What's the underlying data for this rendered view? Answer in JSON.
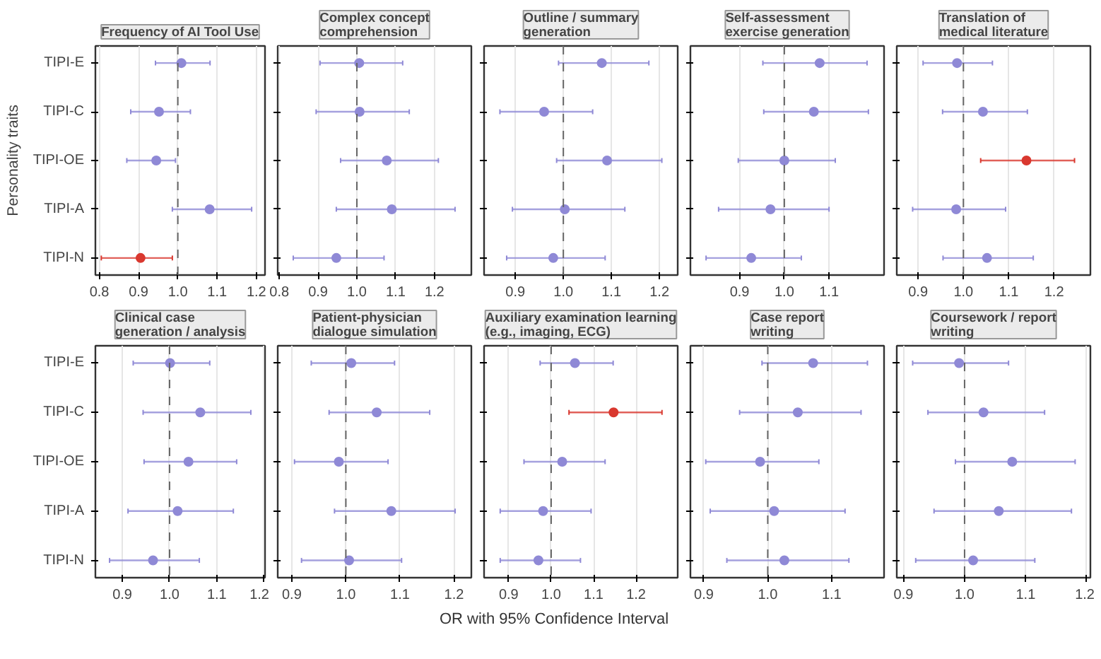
{
  "chart_data": [
    {
      "type": "scatter",
      "orientation": "horizontal",
      "title": "Frequency of AI Tool Use",
      "ylabel": "Personality traits",
      "categories": [
        "TIPI-E",
        "TIPI-C",
        "TIPI-OE",
        "TIPI-A",
        "TIPI-N"
      ],
      "values": [
        1.009,
        0.952,
        0.945,
        1.081,
        0.905
      ],
      "errors": [
        [
          0.943,
          1.082
        ],
        [
          0.88,
          1.032
        ],
        [
          0.87,
          0.994
        ],
        [
          0.986,
          1.188
        ],
        [
          0.805,
          0.986
        ]
      ],
      "colors": [
        "#8f89d6",
        "#8f89d6",
        "#8f89d6",
        "#8f89d6",
        "#d9382f"
      ],
      "xlim": [
        0.79,
        1.222
      ],
      "xticks": [
        {
          "value": 0.8,
          "label": "0.8"
        },
        {
          "value": 0.9,
          "label": "0.9"
        },
        {
          "value": 1.0,
          "label": "1.0"
        },
        {
          "value": 1.1,
          "label": "1.1"
        },
        {
          "value": 1.2,
          "label": "1.2"
        }
      ],
      "grid": "x",
      "marker": "circle",
      "ref_lines": [
        {
          "axis": "x",
          "value": 1,
          "color": "#666666",
          "line_style": "dashed"
        }
      ]
    },
    {
      "type": "scatter",
      "orientation": "horizontal",
      "title": "Complex concept\ncomprehension",
      "categories": [
        null,
        null,
        null,
        null,
        null
      ],
      "values": [
        1.006,
        1.007,
        1.077,
        1.09,
        0.947
      ],
      "errors": [
        [
          0.905,
          1.118
        ],
        [
          0.895,
          1.135
        ],
        [
          0.958,
          1.21
        ],
        [
          0.947,
          1.253
        ],
        [
          0.836,
          1.07
        ]
      ],
      "colors": [
        "#8f89d6",
        "#8f89d6",
        "#8f89d6",
        "#8f89d6",
        "#8f89d6"
      ],
      "xlim": [
        0.796,
        1.295
      ],
      "xticks": [
        {
          "value": 0.8,
          "label": "0.8"
        },
        {
          "value": 0.9,
          "label": "0.9"
        },
        {
          "value": 1.0,
          "label": "1.0"
        },
        {
          "value": 1.1,
          "label": "1.1"
        },
        {
          "value": 1.2,
          "label": "1.2"
        }
      ],
      "grid": "x",
      "marker": "circle",
      "ref_lines": [
        {
          "axis": "x",
          "value": 1,
          "color": "#666666",
          "line_style": "dashed"
        }
      ]
    },
    {
      "type": "scatter",
      "orientation": "horizontal",
      "title": "Outline / summary\ngeneration",
      "categories": [
        null,
        null,
        null,
        null,
        null
      ],
      "values": [
        1.08,
        0.96,
        1.091,
        1.003,
        0.979
      ],
      "errors": [
        [
          0.99,
          1.178
        ],
        [
          0.868,
          1.061
        ],
        [
          0.986,
          1.205
        ],
        [
          0.894,
          1.128
        ],
        [
          0.882,
          1.087
        ]
      ],
      "colors": [
        "#8f89d6",
        "#8f89d6",
        "#8f89d6",
        "#8f89d6",
        "#8f89d6"
      ],
      "xlim": [
        0.835,
        1.238
      ],
      "xticks": [
        {
          "value": 0.9,
          "label": "0.9"
        },
        {
          "value": 1.0,
          "label": "1.0"
        },
        {
          "value": 1.1,
          "label": "1.1"
        },
        {
          "value": 1.2,
          "label": "1.2"
        }
      ],
      "grid": "x",
      "marker": "circle",
      "ref_lines": [
        {
          "axis": "x",
          "value": 1,
          "color": "#666666",
          "line_style": "dashed"
        }
      ]
    },
    {
      "type": "scatter",
      "orientation": "horizontal",
      "title": "Self-assessment\nexercise generation",
      "categories": [
        null,
        null,
        null,
        null,
        null
      ],
      "values": [
        1.079,
        1.066,
        1.0,
        0.969,
        0.926
      ],
      "errors": [
        [
          0.952,
          1.185
        ],
        [
          0.954,
          1.188
        ],
        [
          0.897,
          1.114
        ],
        [
          0.853,
          1.1
        ],
        [
          0.825,
          1.038
        ]
      ],
      "colors": [
        "#8f89d6",
        "#8f89d6",
        "#8f89d6",
        "#8f89d6",
        "#8f89d6"
      ],
      "xlim": [
        0.79,
        1.223
      ],
      "xticks": [
        {
          "value": 0.9,
          "label": "0.9"
        },
        {
          "value": 1.0,
          "label": "1.0"
        },
        {
          "value": 1.1,
          "label": "1.1"
        }
      ],
      "grid": "x",
      "marker": "circle",
      "ref_lines": [
        {
          "axis": "x",
          "value": 1,
          "color": "#666666",
          "line_style": "dashed"
        }
      ]
    },
    {
      "type": "scatter",
      "orientation": "horizontal",
      "title": "Translation of\nmedical literature",
      "categories": [
        null,
        null,
        null,
        null,
        null
      ],
      "values": [
        0.986,
        1.043,
        1.139,
        0.984,
        1.052
      ],
      "errors": [
        [
          0.911,
          1.064
        ],
        [
          0.954,
          1.141
        ],
        [
          1.038,
          1.245
        ],
        [
          0.888,
          1.093
        ],
        [
          0.955,
          1.154
        ]
      ],
      "colors": [
        "#8f89d6",
        "#8f89d6",
        "#d9382f",
        "#8f89d6",
        "#8f89d6"
      ],
      "xlim": [
        0.853,
        1.28
      ],
      "xticks": [
        {
          "value": 0.9,
          "label": "0.9"
        },
        {
          "value": 1.0,
          "label": "1.0"
        },
        {
          "value": 1.1,
          "label": "1.1"
        },
        {
          "value": 1.2,
          "label": "1.2"
        }
      ],
      "grid": "x",
      "marker": "circle",
      "ref_lines": [
        {
          "axis": "x",
          "value": 1,
          "color": "#666666",
          "line_style": "dashed"
        }
      ]
    },
    {
      "type": "scatter",
      "orientation": "horizontal",
      "title": "Clinical case\ngeneration / analysis",
      "categories": [
        "TIPI-E",
        "TIPI-C",
        "TIPI-OE",
        "TIPI-A",
        "TIPI-N"
      ],
      "values": [
        1.001,
        1.065,
        1.04,
        1.017,
        0.965
      ],
      "errors": [
        [
          0.923,
          1.085
        ],
        [
          0.944,
          1.172
        ],
        [
          0.946,
          1.142
        ],
        [
          0.912,
          1.135
        ],
        [
          0.873,
          1.063
        ]
      ],
      "colors": [
        "#8f89d6",
        "#8f89d6",
        "#8f89d6",
        "#8f89d6",
        "#8f89d6"
      ],
      "xlim": [
        0.843,
        1.202
      ],
      "xticks": [
        {
          "value": 0.9,
          "label": "0.9"
        },
        {
          "value": 1.0,
          "label": "1.0"
        },
        {
          "value": 1.1,
          "label": "1.1"
        },
        {
          "value": 1.2,
          "label": "1.2"
        }
      ],
      "grid": "x",
      "marker": "circle",
      "ref_lines": [
        {
          "axis": "x",
          "value": 1,
          "color": "#666666",
          "line_style": "dashed"
        }
      ]
    },
    {
      "type": "scatter",
      "orientation": "horizontal",
      "title": "Patient-physician\ndialogue simulation",
      "categories": [
        null,
        null,
        null,
        null,
        null
      ],
      "values": [
        1.01,
        1.057,
        0.987,
        1.084,
        1.006
      ],
      "errors": [
        [
          0.936,
          1.09
        ],
        [
          0.969,
          1.155
        ],
        [
          0.905,
          1.078
        ],
        [
          0.979,
          1.202
        ],
        [
          0.918,
          1.103
        ]
      ],
      "colors": [
        "#8f89d6",
        "#8f89d6",
        "#8f89d6",
        "#8f89d6",
        "#8f89d6"
      ],
      "xlim": [
        0.874,
        1.232
      ],
      "xticks": [
        {
          "value": 0.9,
          "label": "0.9"
        },
        {
          "value": 1.0,
          "label": "1.0"
        },
        {
          "value": 1.1,
          "label": "1.1"
        },
        {
          "value": 1.2,
          "label": "1.2"
        }
      ],
      "grid": "x",
      "marker": "circle",
      "ref_lines": [
        {
          "axis": "x",
          "value": 1,
          "color": "#666666",
          "line_style": "dashed"
        }
      ]
    },
    {
      "type": "scatter",
      "orientation": "horizontal",
      "title": "Auxiliary examination learning\n(e.g., imaging, ECG)",
      "xlabel": "OR with 95% Confidence Interval",
      "categories": [
        null,
        null,
        null,
        null,
        null
      ],
      "values": [
        1.056,
        1.147,
        1.026,
        0.981,
        0.97
      ],
      "errors": [
        [
          0.974,
          1.146
        ],
        [
          1.042,
          1.261
        ],
        [
          0.936,
          1.127
        ],
        [
          0.88,
          1.094
        ],
        [
          0.88,
          1.069
        ]
      ],
      "colors": [
        "#8f89d6",
        "#d9382f",
        "#8f89d6",
        "#8f89d6",
        "#8f89d6"
      ],
      "xlim": [
        0.842,
        1.298
      ],
      "xticks": [
        {
          "value": 0.9,
          "label": "0.9"
        },
        {
          "value": 1.0,
          "label": "1.0"
        },
        {
          "value": 1.1,
          "label": "1.1"
        },
        {
          "value": 1.2,
          "label": "1.2"
        }
      ],
      "grid": "x",
      "marker": "circle",
      "ref_lines": [
        {
          "axis": "x",
          "value": 1,
          "color": "#666666",
          "line_style": "dashed"
        }
      ]
    },
    {
      "type": "scatter",
      "orientation": "horizontal",
      "title": "Case report\nwriting",
      "categories": [
        null,
        null,
        null,
        null,
        null
      ],
      "values": [
        1.071,
        1.047,
        0.988,
        1.01,
        1.026
      ],
      "errors": [
        [
          0.991,
          1.156
        ],
        [
          0.956,
          1.146
        ],
        [
          0.903,
          1.08
        ],
        [
          0.91,
          1.121
        ],
        [
          0.936,
          1.127
        ]
      ],
      "colors": [
        "#8f89d6",
        "#8f89d6",
        "#8f89d6",
        "#8f89d6",
        "#8f89d6"
      ],
      "xlim": [
        0.879,
        1.182
      ],
      "xticks": [
        {
          "value": 0.9,
          "label": "0.9"
        },
        {
          "value": 1.0,
          "label": "1.0"
        },
        {
          "value": 1.1,
          "label": "1.1"
        }
      ],
      "grid": "x",
      "marker": "circle",
      "ref_lines": [
        {
          "axis": "x",
          "value": 1,
          "color": "#666666",
          "line_style": "dashed"
        }
      ]
    },
    {
      "type": "scatter",
      "orientation": "horizontal",
      "title": "Coursework / report\nwriting",
      "categories": [
        null,
        null,
        null,
        null,
        null
      ],
      "values": [
        0.991,
        1.031,
        1.078,
        1.056,
        1.014
      ],
      "errors": [
        [
          0.915,
          1.072
        ],
        [
          0.94,
          1.131
        ],
        [
          0.985,
          1.181
        ],
        [
          0.95,
          1.175
        ],
        [
          0.92,
          1.115
        ]
      ],
      "colors": [
        "#8f89d6",
        "#8f89d6",
        "#8f89d6",
        "#8f89d6",
        "#8f89d6"
      ],
      "xlim": [
        0.889,
        1.206
      ],
      "xticks": [
        {
          "value": 0.9,
          "label": "0.9"
        },
        {
          "value": 1.0,
          "label": "1.0"
        },
        {
          "value": 1.1,
          "label": "1.1"
        },
        {
          "value": 1.2,
          "label": "1.2"
        }
      ],
      "grid": "x",
      "marker": "circle",
      "ref_lines": [
        {
          "axis": "x",
          "value": 1,
          "color": "#666666",
          "line_style": "dashed"
        }
      ]
    }
  ]
}
